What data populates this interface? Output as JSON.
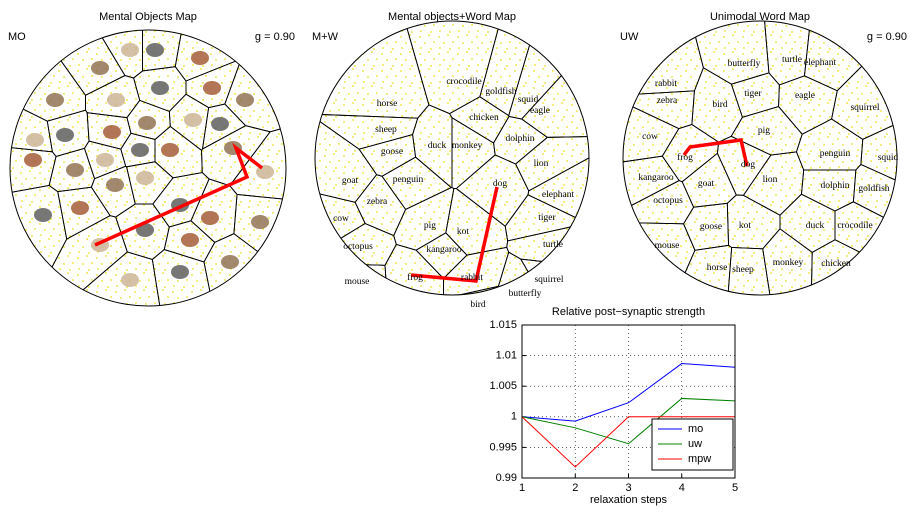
{
  "chart_data": [
    {
      "type": "map",
      "title": "Mental Objects Map",
      "label": "MO",
      "annotation": "g = 0.90"
    },
    {
      "type": "map",
      "title": "Mental objects+Word Map",
      "label": "M+W",
      "words": [
        "crocodile",
        "goldfish",
        "squid",
        "horse",
        "chicken",
        "sheep",
        "eagle",
        "dolphin",
        "goose",
        "duck",
        "monkey",
        "lion",
        "goat",
        "penguin",
        "elephant",
        "zebra",
        "dog",
        "tiger",
        "cow",
        "pig",
        "kot",
        "octopus",
        "kangaroo",
        "turtle",
        "mouse",
        "rabbit",
        "squirrel",
        "frog",
        "bird",
        "butterfly"
      ]
    },
    {
      "type": "map",
      "title": "Unimodal Word Map",
      "label": "UW",
      "annotation": "g = 0.90",
      "words": [
        "butterfly",
        "turtle",
        "elephant",
        "rabbit",
        "zebra",
        "bird",
        "tiger",
        "eagle",
        "squirrel",
        "cow",
        "pig",
        "frog",
        "dog",
        "penguin",
        "squid",
        "kangaroo",
        "lion",
        "dolphin",
        "goldfish",
        "goat",
        "octopus",
        "kot",
        "duck",
        "crocodile",
        "goose",
        "mouse",
        "horse",
        "sheep",
        "monkey",
        "chicken"
      ]
    },
    {
      "type": "line",
      "title": "Relative post−synaptic strength",
      "xlabel": "relaxation steps",
      "x": [
        1,
        2,
        3,
        4,
        5
      ],
      "xlim": [
        1,
        5
      ],
      "xticks": [
        1,
        2,
        3,
        4,
        5
      ],
      "ylim": [
        0.99,
        1.015
      ],
      "yticks": [
        0.99,
        0.995,
        1,
        1.005,
        1.01,
        1.015
      ],
      "grid": true,
      "legend": "lower right",
      "series": [
        {
          "name": "mo",
          "color": "#0000ff",
          "values": [
            1,
            0.9993,
            1.0023,
            1.0087,
            1.0081
          ]
        },
        {
          "name": "uw",
          "color": "#008000",
          "values": [
            1,
            0.9982,
            0.9956,
            1.003,
            1.0026
          ]
        },
        {
          "name": "mpw",
          "color": "#ff0000",
          "values": [
            1,
            0.9918,
            1.0,
            1.0,
            1.0
          ]
        }
      ]
    }
  ]
}
